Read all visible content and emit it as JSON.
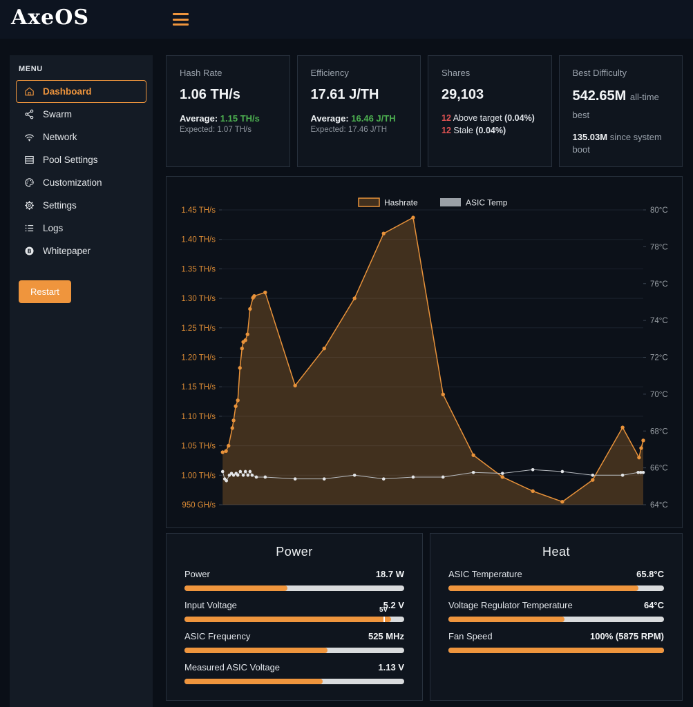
{
  "header": {
    "logo": "AxeOS"
  },
  "sidebar": {
    "menu_label": "MENU",
    "items": [
      {
        "label": "Dashboard",
        "icon": "home-icon",
        "active": true
      },
      {
        "label": "Swarm",
        "icon": "share-icon",
        "active": false
      },
      {
        "label": "Network",
        "icon": "wifi-icon",
        "active": false
      },
      {
        "label": "Pool Settings",
        "icon": "server-icon",
        "active": false
      },
      {
        "label": "Customization",
        "icon": "palette-icon",
        "active": false
      },
      {
        "label": "Settings",
        "icon": "gear-icon",
        "active": false
      },
      {
        "label": "Logs",
        "icon": "list-icon",
        "active": false
      },
      {
        "label": "Whitepaper",
        "icon": "bitcoin-icon",
        "active": false
      }
    ],
    "restart_label": "Restart"
  },
  "stats": {
    "hashrate": {
      "title": "Hash Rate",
      "value": "1.06 TH/s",
      "average_label": "Average:",
      "average": "1.15 TH/s",
      "expected": "Expected: 1.07 TH/s"
    },
    "efficiency": {
      "title": "Efficiency",
      "value": "17.61 J/TH",
      "average_label": "Average:",
      "average": "16.46 J/TH",
      "expected": "Expected: 17.46 J/TH"
    },
    "shares": {
      "title": "Shares",
      "value": "29,103",
      "lines": [
        {
          "count": "12",
          "text": "Above target",
          "pct": "(0.04%)"
        },
        {
          "count": "12",
          "text": "Stale",
          "pct": "(0.04%)"
        }
      ]
    },
    "best_difficulty": {
      "title": "Best Difficulty",
      "value": "542.65M",
      "value_suffix": "all-time best",
      "secondary_value": "135.03M",
      "secondary_suffix": "since system boot"
    }
  },
  "chart_data": {
    "type": "line",
    "legend": [
      "Hashrate",
      "ASIC Temp"
    ],
    "legend_position": "top-center",
    "grid": true,
    "left_axis": {
      "unit": "TH/s",
      "min": 0.95,
      "max": 1.45,
      "ticks": [
        "1.45 TH/s",
        "1.40 TH/s",
        "1.35 TH/s",
        "1.30 TH/s",
        "1.25 TH/s",
        "1.20 TH/s",
        "1.15 TH/s",
        "1.10 TH/s",
        "1.05 TH/s",
        "1.00 TH/s",
        "950 GH/s"
      ]
    },
    "right_axis": {
      "unit": "°C",
      "min": 64,
      "max": 80,
      "ticks": [
        "80°C",
        "78°C",
        "76°C",
        "74°C",
        "72°C",
        "70°C",
        "68°C",
        "66°C",
        "64°C"
      ]
    },
    "series": [
      {
        "name": "Hashrate",
        "axis": "left",
        "unit": "TH/s",
        "color": "#e8923a",
        "fill": "rgba(222,138,48,0.26)",
        "points": [
          [
            0.2,
            1.039
          ],
          [
            1.0,
            1.041
          ],
          [
            1.6,
            1.05
          ],
          [
            2.5,
            1.08
          ],
          [
            2.8,
            1.093
          ],
          [
            3.3,
            1.117
          ],
          [
            3.8,
            1.127
          ],
          [
            4.3,
            1.182
          ],
          [
            4.8,
            1.215
          ],
          [
            5.1,
            1.226
          ],
          [
            5.6,
            1.229
          ],
          [
            6.1,
            1.239
          ],
          [
            6.7,
            1.282
          ],
          [
            7.4,
            1.301
          ],
          [
            7.7,
            1.304
          ],
          [
            10.3,
            1.31
          ],
          [
            17.4,
            1.152
          ],
          [
            24.3,
            1.215
          ],
          [
            31.5,
            1.3
          ],
          [
            38.4,
            1.41
          ],
          [
            45.4,
            1.437
          ],
          [
            52.5,
            1.137
          ],
          [
            59.7,
            1.034
          ],
          [
            66.6,
            0.997
          ],
          [
            73.8,
            0.973
          ],
          [
            80.8,
            0.955
          ],
          [
            88.0,
            0.992
          ],
          [
            95.1,
            1.081
          ],
          [
            99.0,
            1.03
          ],
          [
            99.5,
            1.046
          ],
          [
            100,
            1.059
          ]
        ]
      },
      {
        "name": "ASIC Temp",
        "axis": "right",
        "unit": "°C",
        "color": "#b9bdc2",
        "dot_color": "#e3e5e8",
        "points": [
          [
            0.2,
            65.8
          ],
          [
            0.7,
            65.4
          ],
          [
            1.1,
            65.3
          ],
          [
            1.8,
            65.6
          ],
          [
            2.3,
            65.7
          ],
          [
            2.8,
            65.6
          ],
          [
            3.4,
            65.7
          ],
          [
            3.8,
            65.6
          ],
          [
            4.4,
            65.8
          ],
          [
            5.1,
            65.6
          ],
          [
            5.6,
            65.8
          ],
          [
            6.2,
            65.6
          ],
          [
            6.7,
            65.8
          ],
          [
            7.2,
            65.6
          ],
          [
            8.2,
            65.5
          ],
          [
            10.3,
            65.5
          ],
          [
            17.4,
            65.4
          ],
          [
            24.3,
            65.4
          ],
          [
            31.5,
            65.6
          ],
          [
            38.4,
            65.4
          ],
          [
            45.4,
            65.5
          ],
          [
            52.5,
            65.5
          ],
          [
            59.7,
            65.75
          ],
          [
            66.6,
            65.7
          ],
          [
            73.8,
            65.9
          ],
          [
            80.8,
            65.8
          ],
          [
            88.0,
            65.6
          ],
          [
            95.1,
            65.6
          ],
          [
            98.8,
            65.75
          ],
          [
            99.4,
            65.75
          ],
          [
            100,
            65.75
          ]
        ]
      }
    ]
  },
  "power": {
    "title": "Power",
    "rows": [
      {
        "label": "Power",
        "value": "18.7 W",
        "pct": 47
      },
      {
        "label": "Input Voltage",
        "value": "5.2 V",
        "pct": 94,
        "marker_pct": 90.6,
        "marker_label": "5V"
      },
      {
        "label": "ASIC Frequency",
        "value": "525 MHz",
        "pct": 65
      },
      {
        "label": "Measured ASIC Voltage",
        "value": "1.13 V",
        "pct": 63
      }
    ]
  },
  "heat": {
    "title": "Heat",
    "rows": [
      {
        "label": "ASIC Temperature",
        "value": "65.8°C",
        "pct": 88
      },
      {
        "label": "Voltage Regulator Temperature",
        "value": "64°C",
        "pct": 54
      },
      {
        "label": "Fan Speed",
        "value": "100% (5875 RPM)",
        "pct": 100
      }
    ]
  },
  "colors": {
    "accent_orange": "#ef953d",
    "chart_orange": "#e8923a",
    "average_green": "#4caf50",
    "alert_red": "#e05252",
    "header_bg": "#0d1420",
    "page_bg": "#0a0f17",
    "sidebar_bg": "#141b25",
    "card_bg": "#0f151e",
    "card_border": "#27303c",
    "bar_track": "#d9dbdd"
  }
}
